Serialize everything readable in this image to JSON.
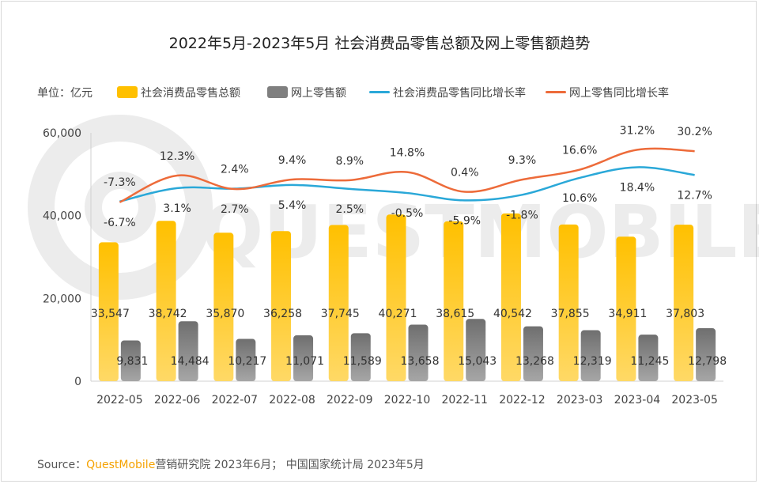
{
  "title": "2022年5月-2023年5月 社会消费品零售总额及网上零售额趋势",
  "unit_label": "单位：亿元",
  "legend": {
    "retail_total": "社会消费品零售总额",
    "online_retail": "网上零售额",
    "retail_growth": "社会消费品零售同比增长率",
    "online_growth": "网上零售同比增长率"
  },
  "source": {
    "prefix": "Source：",
    "brand": "QuestMobile",
    "rest": "营销研究院 2023年6月；  中国国家统计局 2023年5月"
  },
  "watermark": "QUESTMOBILE",
  "colors": {
    "bar_retail": "#ffc000",
    "bar_online": "#7f7f7f",
    "line_retail": "#2aa8d8",
    "line_online": "#ed6b3a"
  },
  "chart_data": {
    "type": "bar",
    "categories": [
      "2022-05",
      "2022-06",
      "2022-07",
      "2022-08",
      "2022-09",
      "2022-10",
      "2022-11",
      "2022-12",
      "2023-03",
      "2023-04",
      "2023-05"
    ],
    "ylim": [
      0,
      60000
    ],
    "yticks": [
      "0",
      "20,000",
      "40,000",
      "60,000"
    ],
    "series": [
      {
        "name": "社会消费品零售总额",
        "kind": "bar",
        "values": [
          33547,
          38742,
          35870,
          36258,
          37745,
          40271,
          38615,
          40542,
          37855,
          34911,
          37803
        ],
        "labels": [
          "33,547",
          "38,742",
          "35,870",
          "36,258",
          "37,745",
          "40,271",
          "38,615",
          "40,542",
          "37,855",
          "34,911",
          "37,803"
        ]
      },
      {
        "name": "网上零售额",
        "kind": "bar",
        "values": [
          9831,
          14484,
          10217,
          11071,
          11589,
          13658,
          15043,
          13268,
          12319,
          11245,
          12798
        ],
        "labels": [
          "9,831",
          "14,484",
          "10,217",
          "11,071",
          "11,589",
          "13,658",
          "15,043",
          "13,268",
          "12,319",
          "11,245",
          "12,798"
        ]
      },
      {
        "name": "社会消费品零售同比增长率",
        "kind": "line",
        "unit": "%",
        "values": [
          -6.7,
          3.1,
          2.7,
          5.4,
          2.5,
          -0.5,
          -5.9,
          -1.8,
          10.6,
          18.4,
          12.7
        ],
        "labels": [
          "-6.7%",
          "3.1%",
          "2.7%",
          "5.4%",
          "2.5%",
          "-0.5%",
          "-5.9%",
          "-1.8%",
          "10.6%",
          "18.4%",
          "12.7%"
        ]
      },
      {
        "name": "网上零售同比增长率",
        "kind": "line",
        "unit": "%",
        "values": [
          -7.3,
          12.3,
          2.4,
          9.4,
          8.9,
          14.8,
          0.4,
          9.3,
          16.6,
          31.2,
          30.2
        ],
        "labels": [
          "-7.3%",
          "12.3%",
          "2.4%",
          "9.4%",
          "8.9%",
          "14.8%",
          "0.4%",
          "9.3%",
          "16.6%",
          "31.2%",
          "30.2%"
        ]
      }
    ]
  }
}
